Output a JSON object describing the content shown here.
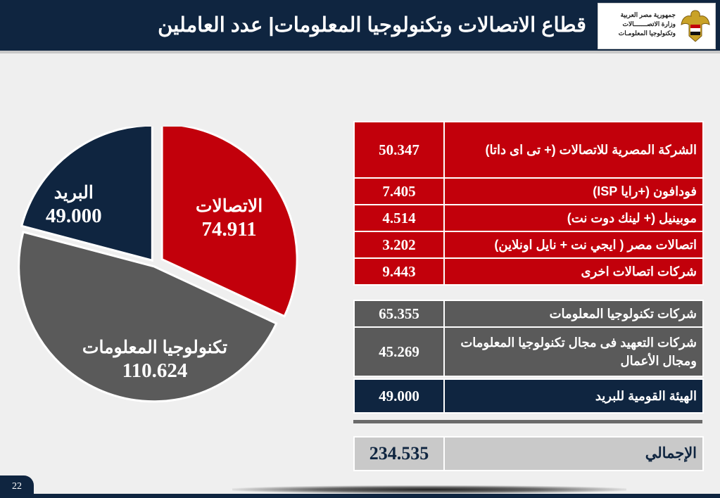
{
  "header": {
    "title": "قطاع الاتصالات وتكنولوجيا المعلومات| عدد العاملين",
    "ministry_lines": [
      "جمهورية مصر العربية",
      "وزارة الاتصـــــــالات",
      "وتكنولوجيا المعلومـات"
    ]
  },
  "colors": {
    "navy": "#0f2540",
    "red": "#c2000b",
    "grey": "#5a5a5a",
    "light_grey": "#c9c9c9",
    "background": "#efefef"
  },
  "chart_data": {
    "type": "pie",
    "title": "",
    "slices": [
      {
        "label": "الاتصالات",
        "value": 74.911,
        "display": "74.911",
        "color": "#c2000b"
      },
      {
        "label": "تكنولوجيا المعلومات",
        "value": 110.624,
        "display": "110.624",
        "color": "#5a5a5a"
      },
      {
        "label": "البريد",
        "value": 49.0,
        "display": "49.000",
        "color": "#0f2540"
      }
    ]
  },
  "table": {
    "telecom_rows": [
      {
        "name": "الشركة المصرية للاتصالات (+ تى اى داتا)",
        "value": "50.347"
      },
      {
        "name": "فودافون  (+رايا ISP)",
        "value": "7.405"
      },
      {
        "name": "موبينيل (+ لينك دوت نت)",
        "value": "4.514"
      },
      {
        "name": "اتصالات مصر ( ايجي نت + نايل اونلاين)",
        "value": "3.202"
      },
      {
        "name": "شركات اتصالات اخرى",
        "value": "9.443"
      }
    ],
    "it_rows": [
      {
        "name": "شركات تكنولوجيا المعلومات",
        "value": "65.355"
      },
      {
        "name": "شركات التعهيد فى مجال تكنولوجيا المعلومات ومجال الأعمال",
        "value": "45.269"
      }
    ],
    "post_row": {
      "name": "الهيئة القومية للبريد",
      "value": "49.000"
    },
    "total_row": {
      "name": "الإجمالي",
      "value": "234.535"
    }
  },
  "slide_number": "22"
}
